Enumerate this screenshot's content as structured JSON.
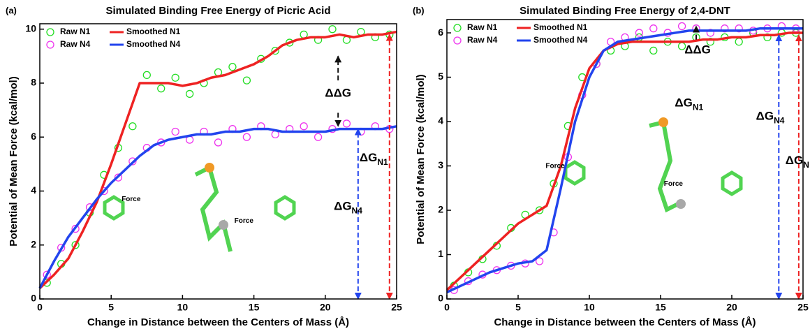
{
  "chart_data": [
    {
      "type": "scatter-line",
      "panel_label": "(a)",
      "title": "Simulated Binding Free Energy of Picric Acid",
      "xlabel": "Change in Distance between the Centers of Mass (Å)",
      "ylabel": "Potential of Mean Force (kcal/mol)",
      "xlim": [
        0,
        25
      ],
      "ylim": [
        0,
        10.2
      ],
      "xticks": [
        0,
        5,
        10,
        15,
        20,
        25
      ],
      "yticks": [
        0,
        2,
        4,
        6,
        8,
        10
      ],
      "legend": "upper left",
      "series": [
        {
          "name": "Raw N1",
          "style": "circles",
          "color": "#22dd22",
          "x": [
            0.5,
            1.5,
            2.5,
            3.5,
            4.5,
            5.5,
            6.5,
            7.5,
            8.5,
            9.5,
            10.5,
            11.5,
            12.5,
            13.5,
            14.5,
            15.5,
            16.5,
            17.5,
            18.5,
            19.5,
            20.5,
            21.5,
            22.5,
            23.5,
            24.5
          ],
          "values": [
            0.6,
            1.3,
            2.0,
            3.2,
            4.6,
            5.6,
            6.4,
            8.3,
            7.8,
            8.2,
            7.6,
            8.0,
            8.4,
            8.6,
            8.1,
            8.9,
            9.2,
            9.5,
            9.8,
            9.6,
            10.0,
            9.6,
            9.9,
            9.7,
            9.8
          ]
        },
        {
          "name": "Raw N4",
          "style": "circles",
          "color": "#ee33ee",
          "x": [
            0.5,
            1.5,
            2.5,
            3.5,
            4.5,
            5.5,
            6.5,
            7.5,
            8.5,
            9.5,
            10.5,
            11.5,
            12.5,
            13.5,
            14.5,
            15.5,
            16.5,
            17.5,
            18.5,
            19.5,
            20.5,
            21.5,
            22.5,
            23.5,
            24.5
          ],
          "values": [
            0.9,
            1.9,
            2.6,
            3.4,
            4.0,
            4.5,
            5.1,
            5.6,
            5.8,
            6.2,
            5.9,
            6.2,
            5.8,
            6.3,
            6.0,
            6.4,
            6.1,
            6.3,
            6.4,
            6.0,
            6.3,
            6.5,
            6.2,
            6.4,
            6.3
          ]
        },
        {
          "name": "Smoothed N1",
          "style": "line",
          "color": "#ee2222",
          "x": [
            0,
            1,
            2,
            3,
            4,
            5,
            6,
            7,
            8,
            9,
            10,
            11,
            12,
            13,
            14,
            15,
            16,
            17,
            18,
            19,
            20,
            21,
            22,
            23,
            24,
            25
          ],
          "values": [
            0.4,
            0.9,
            1.5,
            2.5,
            3.6,
            5.0,
            6.5,
            8.0,
            8.0,
            8.0,
            7.9,
            8.0,
            8.2,
            8.3,
            8.5,
            8.7,
            9.0,
            9.4,
            9.6,
            9.7,
            9.7,
            9.8,
            9.7,
            9.8,
            9.8,
            9.9
          ]
        },
        {
          "name": "Smoothed N4",
          "style": "line",
          "color": "#2244ee",
          "x": [
            0,
            1,
            2,
            3,
            4,
            5,
            6,
            7,
            8,
            9,
            10,
            11,
            12,
            13,
            14,
            15,
            16,
            17,
            18,
            19,
            20,
            21,
            22,
            23,
            24,
            25
          ],
          "values": [
            0.4,
            1.4,
            2.3,
            3.0,
            3.7,
            4.3,
            4.8,
            5.3,
            5.7,
            5.9,
            6.0,
            6.1,
            6.1,
            6.2,
            6.2,
            6.3,
            6.3,
            6.2,
            6.2,
            6.2,
            6.2,
            6.3,
            6.3,
            6.3,
            6.3,
            6.4
          ]
        }
      ],
      "arrows": [
        {
          "color": "#111111",
          "x": [
            20.9,
            20.9
          ],
          "y": [
            8.1,
            9.0
          ]
        },
        {
          "color": "#111111",
          "x": [
            20.9,
            20.9
          ],
          "y": [
            6.9,
            6.4
          ]
        },
        {
          "color": "#2244ee",
          "x": [
            22.3,
            22.3
          ],
          "y": [
            0,
            6.3
          ]
        },
        {
          "color": "#ee2222",
          "x": [
            24.5,
            24.5
          ],
          "y": [
            0,
            9.8
          ]
        }
      ],
      "annotations": [
        {
          "text": "ΔΔG",
          "x": 20.9,
          "y": 7.6
        },
        {
          "text": "ΔG",
          "sub": "N4",
          "x": 21.6,
          "y": 3.4
        },
        {
          "text": "ΔG",
          "sub": "N1",
          "x": 23.4,
          "y": 5.2
        },
        {
          "text": "Force",
          "x": 6.4,
          "y": 3.7
        },
        {
          "text": "Force",
          "x": 14.3,
          "y": 2.9
        }
      ]
    },
    {
      "type": "scatter-line",
      "panel_label": "(b)",
      "title": "Simulated Binding Free Energy of 2,4-DNT",
      "xlabel": "Change in Distance between the Centers of Mass (Å)",
      "ylabel": "Potential of Mean Force (kcal/mol)",
      "xlim": [
        0,
        25
      ],
      "ylim": [
        0,
        6.3
      ],
      "xticks": [
        0,
        5,
        10,
        15,
        20,
        25
      ],
      "yticks": [
        0,
        1,
        2,
        3,
        4,
        5,
        6
      ],
      "legend": "upper left",
      "series": [
        {
          "name": "Raw N1",
          "style": "circles",
          "color": "#22dd22",
          "x": [
            0.5,
            1.5,
            2.5,
            3.5,
            4.5,
            5.5,
            6.5,
            7.5,
            8.5,
            9.5,
            10.5,
            11.5,
            12.5,
            13.5,
            14.5,
            15.5,
            16.5,
            17.5,
            18.5,
            19.5,
            20.5,
            21.5,
            22.5,
            23.5,
            24.5
          ],
          "values": [
            0.3,
            0.6,
            0.9,
            1.2,
            1.6,
            1.9,
            2.0,
            2.6,
            3.9,
            5.0,
            5.3,
            5.6,
            5.7,
            5.9,
            5.6,
            5.8,
            5.7,
            5.9,
            5.8,
            5.9,
            5.8,
            6.0,
            5.9,
            6.0,
            6.0
          ]
        },
        {
          "name": "Raw N4",
          "style": "circles",
          "color": "#ee33ee",
          "x": [
            0.5,
            1.5,
            2.5,
            3.5,
            4.5,
            5.5,
            6.5,
            7.5,
            8.5,
            9.5,
            10.5,
            11.5,
            12.5,
            13.5,
            14.5,
            15.5,
            16.5,
            17.5,
            18.5,
            19.5,
            20.5,
            21.5,
            22.5,
            23.5,
            24.5
          ],
          "values": [
            0.2,
            0.4,
            0.55,
            0.65,
            0.75,
            0.8,
            0.85,
            1.5,
            3.2,
            4.6,
            5.3,
            5.8,
            5.9,
            6.0,
            6.1,
            6.0,
            6.15,
            6.1,
            6.0,
            6.1,
            6.1,
            6.05,
            6.1,
            6.15,
            6.1
          ]
        },
        {
          "name": "Smoothed N1",
          "style": "line",
          "color": "#ee2222",
          "x": [
            0,
            1,
            2,
            3,
            4,
            5,
            6,
            7,
            8,
            9,
            10,
            11,
            12,
            13,
            14,
            15,
            16,
            17,
            18,
            19,
            20,
            21,
            22,
            23,
            24,
            25
          ],
          "values": [
            0.2,
            0.5,
            0.8,
            1.1,
            1.4,
            1.7,
            1.9,
            2.1,
            3.0,
            4.3,
            5.2,
            5.6,
            5.75,
            5.8,
            5.8,
            5.8,
            5.8,
            5.8,
            5.85,
            5.85,
            5.9,
            5.9,
            5.95,
            5.95,
            6.0,
            6.0
          ]
        },
        {
          "name": "Smoothed N4",
          "style": "line",
          "color": "#2244ee",
          "x": [
            0,
            1,
            2,
            3,
            4,
            5,
            6,
            7,
            8,
            9,
            10,
            11,
            12,
            13,
            14,
            15,
            16,
            17,
            18,
            19,
            20,
            21,
            22,
            23,
            24,
            25
          ],
          "values": [
            0.15,
            0.3,
            0.45,
            0.6,
            0.7,
            0.8,
            0.85,
            1.1,
            2.5,
            4.0,
            5.0,
            5.6,
            5.8,
            5.85,
            5.9,
            5.95,
            6.0,
            6.05,
            6.05,
            6.05,
            6.05,
            6.05,
            6.1,
            6.1,
            6.1,
            6.1
          ]
        }
      ],
      "arrows": [
        {
          "color": "#111111",
          "x": [
            17.5,
            17.5
          ],
          "y": [
            5.85,
            6.15
          ]
        },
        {
          "color": "#2244ee",
          "x": [
            23.3,
            23.3
          ],
          "y": [
            0,
            5.95
          ]
        },
        {
          "color": "#ee2222",
          "x": [
            24.7,
            24.7
          ],
          "y": [
            0,
            5.95
          ]
        }
      ],
      "annotations": [
        {
          "text": "ΔΔG",
          "x": 17.6,
          "y": 5.6
        },
        {
          "text": "ΔG",
          "sub": "N1",
          "x": 17.0,
          "y": 4.4
        },
        {
          "text": "ΔG",
          "sub": "N4",
          "x": 22.7,
          "y": 4.1
        },
        {
          "text": "ΔG",
          "sub": "N",
          "x": 24.6,
          "y": 3.1
        },
        {
          "text": "Force",
          "x": 7.6,
          "y": 3.0
        },
        {
          "text": "Force",
          "x": 15.9,
          "y": 2.6
        }
      ]
    }
  ]
}
